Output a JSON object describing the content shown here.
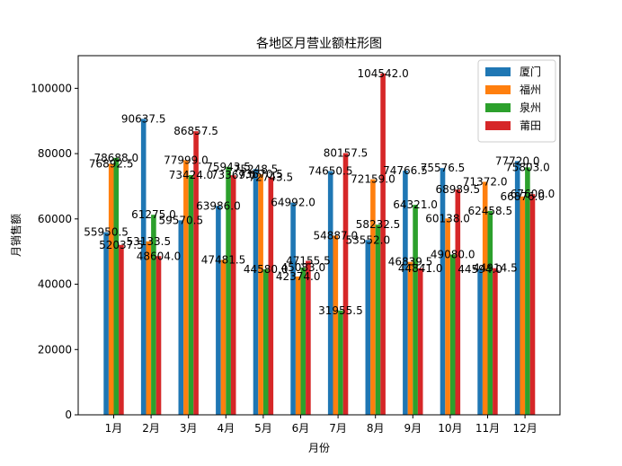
{
  "chart_data": {
    "type": "bar",
    "title": "各地区月营业额柱形图",
    "xlabel": "月份",
    "ylabel": "月销售额",
    "categories": [
      "1月",
      "2月",
      "3月",
      "4月",
      "5月",
      "6月",
      "7月",
      "8月",
      "9月",
      "10月",
      "11月",
      "12月"
    ],
    "ylim": [
      0,
      110000
    ],
    "yticks": [
      0,
      20000,
      40000,
      60000,
      80000,
      100000
    ],
    "legend_position": "top-right",
    "series": [
      {
        "name": "厦门",
        "color": "#1f77b4",
        "values": [
          55950.5,
          90637.5,
          59570.5,
          63986.0,
          75248.5,
          64992.0,
          74650.5,
          53552.0,
          74766.5,
          75576.5,
          44594.0,
          77720.0
        ],
        "labels": [
          "55950.5",
          "90637.5",
          "59570.5",
          "63986.0",
          "75248.5",
          "64992.0",
          "74650.5",
          "53552.0",
          "74766.5",
          "75576.5",
          "44594.0",
          "77720.0"
        ]
      },
      {
        "name": "福州",
        "color": "#ff7f0e",
        "values": [
          76892.5,
          53133.5,
          77999.0,
          47481.5,
          73670.5,
          42374.0,
          54887.0,
          72159.0,
          46839.5,
          60138.0,
          71372.0,
          66876.0
        ],
        "labels": [
          "76892.5",
          "53133.5",
          "77999.0",
          "47481.5",
          "73670.5",
          "42374.0",
          "54887.0",
          "72159.0",
          "46839.5",
          "60138.0",
          "71372.0",
          "66876.0"
        ]
      },
      {
        "name": "泉州",
        "color": "#2ca02c",
        "values": [
          78688.0,
          61275.0,
          73424.0,
          75943.5,
          44580.0,
          45083.0,
          31955.5,
          58232.5,
          64321.0,
          49080.0,
          62458.5,
          75803.0
        ],
        "labels": [
          "78688.0",
          "61275.0",
          "73424.0",
          "75943.5",
          "44580.0",
          "45083.0",
          "31955.5",
          "58232.5",
          "64321.0",
          "49080.0",
          "62458.5",
          "75803.0"
        ]
      },
      {
        "name": "莆田",
        "color": "#d62728",
        "values": [
          52037.5,
          48604.0,
          86857.5,
          73369.0,
          72743.5,
          47155.5,
          80157.5,
          104542.0,
          44841.0,
          68989.5,
          44914.5,
          67600.0
        ],
        "labels": [
          "52037.5",
          "48604.0",
          "86857.5",
          "73369.0",
          "72743.5",
          "47155.5",
          "80157.5",
          "104542.0",
          "44841.0",
          "68989.5",
          "44914.5",
          "67600.0"
        ]
      }
    ]
  }
}
